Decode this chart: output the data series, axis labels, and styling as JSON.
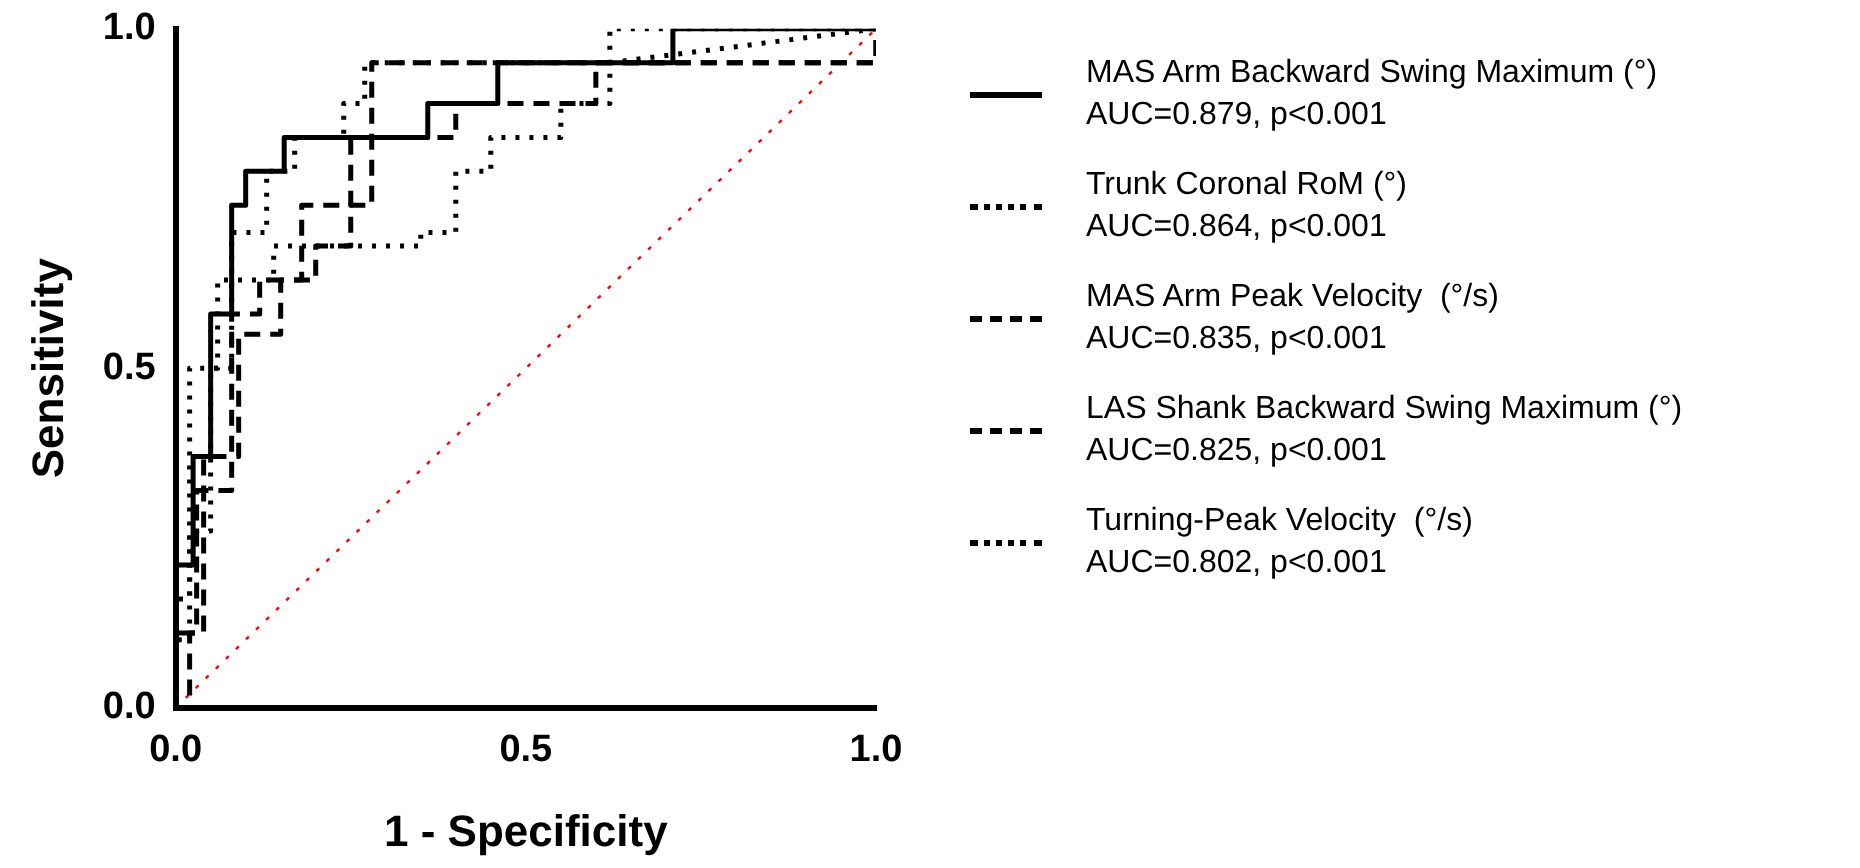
{
  "chart_data": {
    "type": "line",
    "xlabel": "1 - Specificity",
    "ylabel": "Sensitivity",
    "xlim": [
      0,
      1
    ],
    "ylim": [
      0,
      1
    ],
    "xticks": [
      {
        "value": 0,
        "label": "0.0"
      },
      {
        "value": 0.5,
        "label": "0.5"
      },
      {
        "value": 1,
        "label": "1.0"
      }
    ],
    "yticks": [
      {
        "value": 0,
        "label": "0.0"
      },
      {
        "value": 0.5,
        "label": "0.5"
      },
      {
        "value": 1,
        "label": "1.0"
      }
    ],
    "grid": false,
    "legend": "right",
    "marker": "none",
    "series": [
      {
        "name": "MAS Arm Backward Swing Maximum (°)\nAUC=0.879, p<0.001",
        "color": "#000000",
        "line_style": "solid",
        "x": [
          0,
          0,
          0.025,
          0.025,
          0.05,
          0.05,
          0.08,
          0.08,
          0.1,
          0.1,
          0.155,
          0.155,
          0.36,
          0.36,
          0.46,
          0.46,
          0.71,
          0.71,
          1
        ],
        "values": [
          0,
          0.21,
          0.21,
          0.37,
          0.37,
          0.58,
          0.58,
          0.74,
          0.74,
          0.79,
          0.79,
          0.84,
          0.84,
          0.89,
          0.89,
          0.95,
          0.95,
          1,
          1
        ]
      },
      {
        "name": "Trunk Coronal RoM (°)\nAUC=0.864, p<0.001",
        "color": "#000000",
        "line_style": "dotted",
        "x": [
          0,
          0,
          0.02,
          0.02,
          0.06,
          0.06,
          0.08,
          0.08,
          0.13,
          0.13,
          0.17,
          0.17,
          0.24,
          0.24,
          0.27,
          0.27,
          0.62,
          1
        ],
        "values": [
          0,
          0.16,
          0.16,
          0.5,
          0.5,
          0.63,
          0.63,
          0.7,
          0.7,
          0.79,
          0.79,
          0.84,
          0.84,
          0.89,
          0.89,
          0.95,
          0.95,
          1
        ]
      },
      {
        "name": "MAS Arm Peak Velocity  (°/s)\nAUC=0.835, p<0.001",
        "color": "#000000",
        "line_style": "dashed",
        "x": [
          0,
          0,
          0.03,
          0.03,
          0.08,
          0.08,
          0.12,
          0.12,
          0.2,
          0.2,
          0.25,
          0.25,
          0.28,
          0.28,
          1,
          1
        ],
        "values": [
          0,
          0.11,
          0.11,
          0.32,
          0.32,
          0.58,
          0.58,
          0.63,
          0.63,
          0.68,
          0.68,
          0.74,
          0.74,
          0.95,
          0.95,
          1
        ]
      },
      {
        "name": "LAS Shank Backward Swing Maximum (°)\nAUC=0.825, p<0.001",
        "color": "#000000",
        "line_style": "dashed",
        "x": [
          0,
          0.02,
          0.02,
          0.04,
          0.04,
          0.09,
          0.09,
          0.15,
          0.15,
          0.18,
          0.18,
          0.25,
          0.25,
          0.4,
          0.4,
          0.6,
          0.6,
          1,
          1
        ],
        "values": [
          0,
          0,
          0.11,
          0.11,
          0.37,
          0.37,
          0.55,
          0.55,
          0.63,
          0.63,
          0.74,
          0.74,
          0.84,
          0.84,
          0.89,
          0.89,
          0.95,
          0.95,
          1
        ]
      },
      {
        "name": "Turning-Peak Velocity  (°/s)\nAUC=0.802, p<0.001",
        "color": "#000000",
        "line_style": "dotted",
        "x": [
          0,
          0,
          0.02,
          0.02,
          0.05,
          0.05,
          0.08,
          0.08,
          0.14,
          0.14,
          0.35,
          0.35,
          0.4,
          0.4,
          0.45,
          0.45,
          0.55,
          0.55,
          0.62,
          0.62,
          1
        ],
        "values": [
          0,
          0.1,
          0.1,
          0.26,
          0.26,
          0.5,
          0.5,
          0.63,
          0.63,
          0.68,
          0.68,
          0.7,
          0.7,
          0.79,
          0.79,
          0.84,
          0.84,
          0.89,
          0.89,
          1,
          1
        ]
      },
      {
        "color": "#ff0000",
        "line_style": "dotted",
        "x": [
          0,
          1
        ],
        "values": [
          0,
          1
        ]
      }
    ]
  }
}
